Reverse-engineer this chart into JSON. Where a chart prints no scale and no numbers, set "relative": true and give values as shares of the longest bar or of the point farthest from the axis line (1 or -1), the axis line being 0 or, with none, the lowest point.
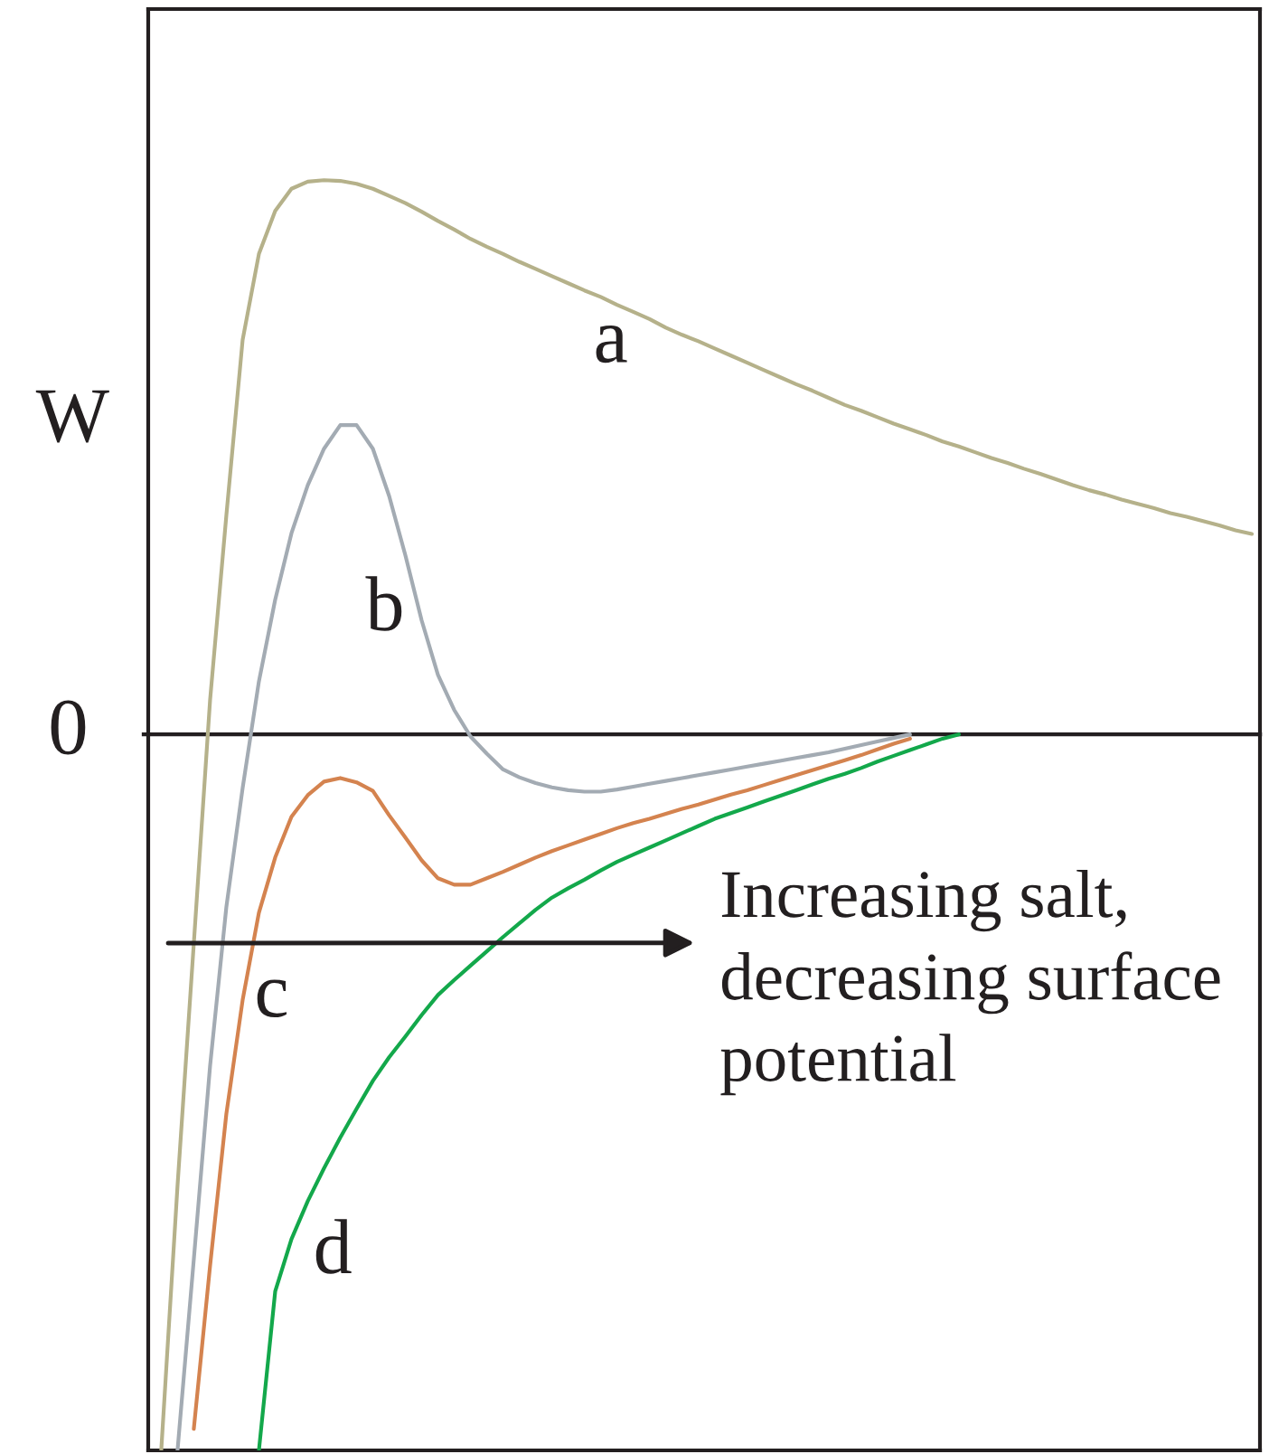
{
  "chart_data": {
    "type": "line",
    "relative": true,
    "ylabel": "W",
    "categories": [
      null,
      null,
      null,
      null,
      null,
      null,
      null,
      null,
      null,
      null,
      null,
      null,
      null,
      null,
      null,
      null,
      null,
      null,
      null,
      null,
      null,
      null,
      null,
      null,
      null,
      null,
      null,
      null,
      null,
      null,
      null,
      null,
      null,
      null,
      null,
      null,
      null,
      null,
      null,
      null,
      null,
      null,
      null,
      null,
      null,
      null,
      null,
      null,
      null,
      null,
      null,
      null,
      null,
      null,
      null,
      null,
      null,
      null,
      null,
      null,
      null,
      null,
      null,
      null,
      null,
      null,
      null,
      null
    ],
    "series": [
      {
        "name": "a",
        "color": "#b5b18a",
        "values": [
          -1.0,
          -0.63,
          -0.292,
          0.048,
          0.306,
          0.551,
          0.671,
          0.731,
          0.762,
          0.772,
          0.774,
          0.773,
          0.769,
          0.762,
          0.752,
          0.742,
          0.73,
          0.717,
          0.705,
          0.692,
          0.681,
          0.671,
          0.66,
          0.65,
          0.64,
          0.63,
          0.62,
          0.611,
          0.6,
          0.59,
          0.58,
          0.568,
          0.558,
          0.549,
          0.539,
          0.529,
          0.519,
          0.509,
          0.499,
          0.489,
          0.48,
          0.47,
          0.46,
          0.452,
          0.443,
          0.434,
          0.426,
          0.418,
          0.409,
          0.402,
          0.394,
          0.386,
          0.379,
          0.371,
          0.364,
          0.356,
          0.348,
          0.341,
          0.335,
          0.328,
          0.322,
          0.316,
          0.309,
          0.304,
          0.298,
          0.292,
          0.285,
          0.28
        ]
      },
      {
        "name": "b",
        "color": "#a3abb3",
        "values": [
          null,
          -1.0,
          -0.733,
          -0.463,
          -0.241,
          -0.075,
          0.074,
          0.188,
          0.281,
          0.348,
          0.399,
          0.432,
          0.432,
          0.399,
          0.333,
          0.25,
          0.159,
          0.083,
          0.034,
          -0.003,
          -0.027,
          -0.049,
          -0.06,
          -0.068,
          -0.074,
          -0.078,
          -0.08,
          -0.08,
          -0.077,
          -0.073,
          -0.069,
          -0.065,
          -0.061,
          -0.057,
          -0.053,
          -0.049,
          -0.045,
          -0.041,
          -0.037,
          -0.033,
          -0.029,
          -0.025,
          -0.02,
          -0.015,
          -0.01,
          -0.005,
          0.0,
          null,
          null,
          null,
          null,
          null,
          null,
          null,
          null,
          null,
          null,
          null,
          null,
          null,
          null,
          null,
          null,
          null,
          null,
          null,
          null,
          null
        ]
      },
      {
        "name": "c",
        "color": "#d4834f",
        "values": [
          null,
          null,
          -0.97,
          -0.742,
          -0.53,
          -0.371,
          -0.249,
          -0.172,
          -0.115,
          -0.085,
          -0.066,
          -0.061,
          -0.067,
          -0.079,
          -0.113,
          -0.144,
          -0.176,
          -0.201,
          -0.21,
          -0.21,
          -0.201,
          -0.192,
          -0.182,
          -0.172,
          -0.163,
          -0.155,
          -0.147,
          -0.139,
          -0.131,
          -0.124,
          -0.118,
          -0.111,
          -0.104,
          -0.098,
          -0.091,
          -0.084,
          -0.078,
          -0.071,
          -0.064,
          -0.057,
          -0.05,
          -0.043,
          -0.036,
          -0.029,
          -0.021,
          -0.013,
          -0.006,
          null,
          null,
          null,
          null,
          null,
          null,
          null,
          null,
          null,
          null,
          null,
          null,
          null,
          null,
          null,
          null,
          null,
          null,
          null,
          null,
          null
        ]
      },
      {
        "name": "d",
        "color": "#13a84b",
        "values": [
          null,
          null,
          null,
          null,
          null,
          null,
          -1.0,
          -0.778,
          -0.705,
          -0.652,
          -0.606,
          -0.563,
          -0.523,
          -0.484,
          -0.451,
          -0.422,
          -0.392,
          -0.364,
          -0.343,
          -0.323,
          -0.303,
          -0.283,
          -0.264,
          -0.245,
          -0.228,
          -0.215,
          -0.203,
          -0.19,
          -0.178,
          -0.168,
          -0.158,
          -0.148,
          -0.138,
          -0.128,
          -0.118,
          -0.11,
          -0.102,
          -0.094,
          -0.086,
          -0.078,
          -0.07,
          -0.062,
          -0.055,
          -0.047,
          -0.038,
          -0.03,
          -0.022,
          -0.014,
          -0.006,
          0.0,
          null,
          null,
          null,
          null,
          null,
          null,
          null,
          null,
          null,
          null,
          null,
          null,
          null,
          null,
          null,
          null,
          null,
          null
        ]
      }
    ],
    "ref_lines": [
      {
        "axis": "y",
        "value": 0,
        "label": "0"
      }
    ],
    "annotations": [
      "Increasing salt,\ndecreasing surface\npotential"
    ]
  }
}
